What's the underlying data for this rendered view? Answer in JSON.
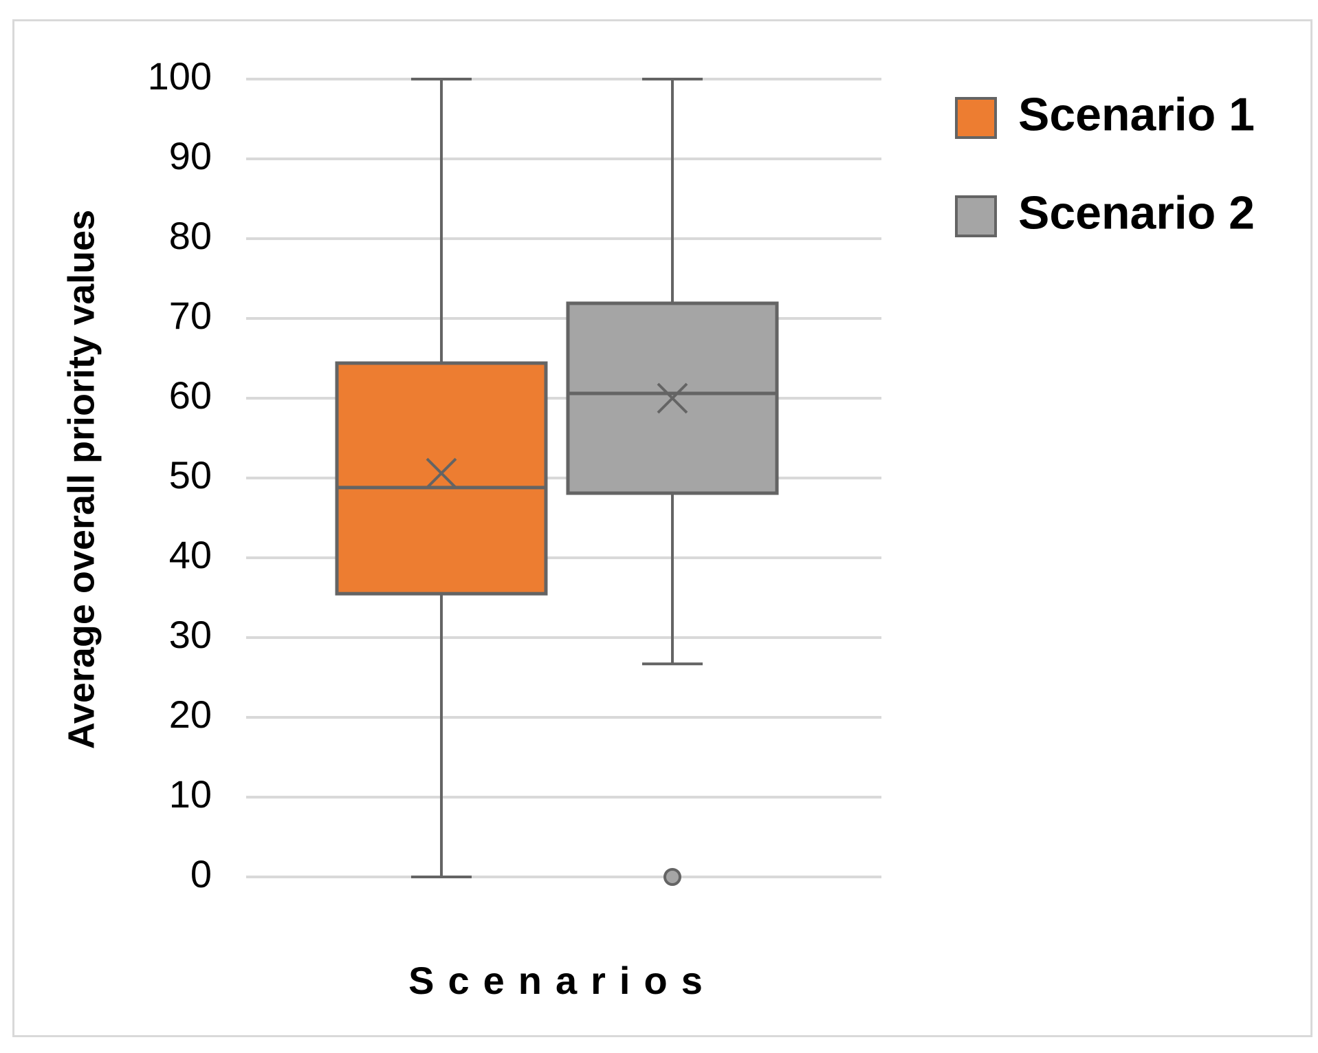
{
  "chart_data": {
    "type": "box",
    "ylabel": "Average overall priority values",
    "xlabel": "Scenarios",
    "ylim": [
      0,
      100
    ],
    "yticks": [
      "0",
      "10",
      "20",
      "30",
      "40",
      "50",
      "60",
      "70",
      "80",
      "90",
      "100"
    ],
    "grid": true,
    "legend_position": "right",
    "series": [
      {
        "name": "Scenario 1",
        "color": "#ED7D31",
        "whisker_low": 0,
        "q1": 35.5,
        "median": 48.8,
        "q3": 64.4,
        "whisker_high": 100,
        "mean": 50.6,
        "outliers": []
      },
      {
        "name": "Scenario 2",
        "color": "#A5A5A5",
        "whisker_low": 26.7,
        "q1": 48.1,
        "median": 60.6,
        "q3": 71.9,
        "whisker_high": 100,
        "mean": 60.0,
        "outliers": [
          0
        ]
      }
    ]
  }
}
